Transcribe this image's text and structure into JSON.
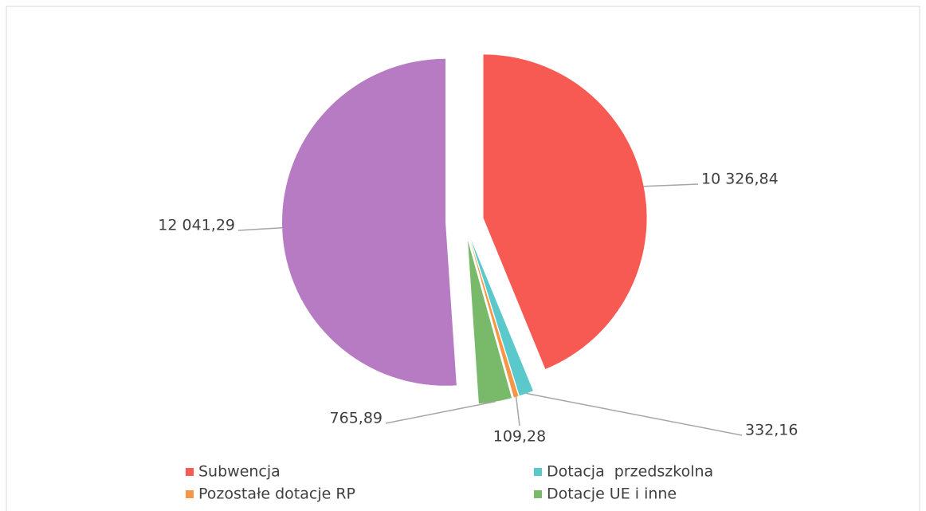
{
  "chart_data": {
    "type": "pie",
    "categories": [
      "Subwencja",
      "Dotacja  przedszkolna",
      "Pozostałe dotacje RP",
      "Dotacje UE i inne",
      null
    ],
    "values": [
      10326.84,
      332.16,
      109.28,
      765.89,
      12041.29
    ],
    "value_labels": [
      "10 326,84",
      "332,16",
      "109,28",
      "765,89",
      "12 041,29"
    ],
    "colors": [
      "#f75a53",
      "#5bc8cc",
      "#f79646",
      "#78b96a",
      "#b77bc3"
    ],
    "legend": "bottom"
  }
}
